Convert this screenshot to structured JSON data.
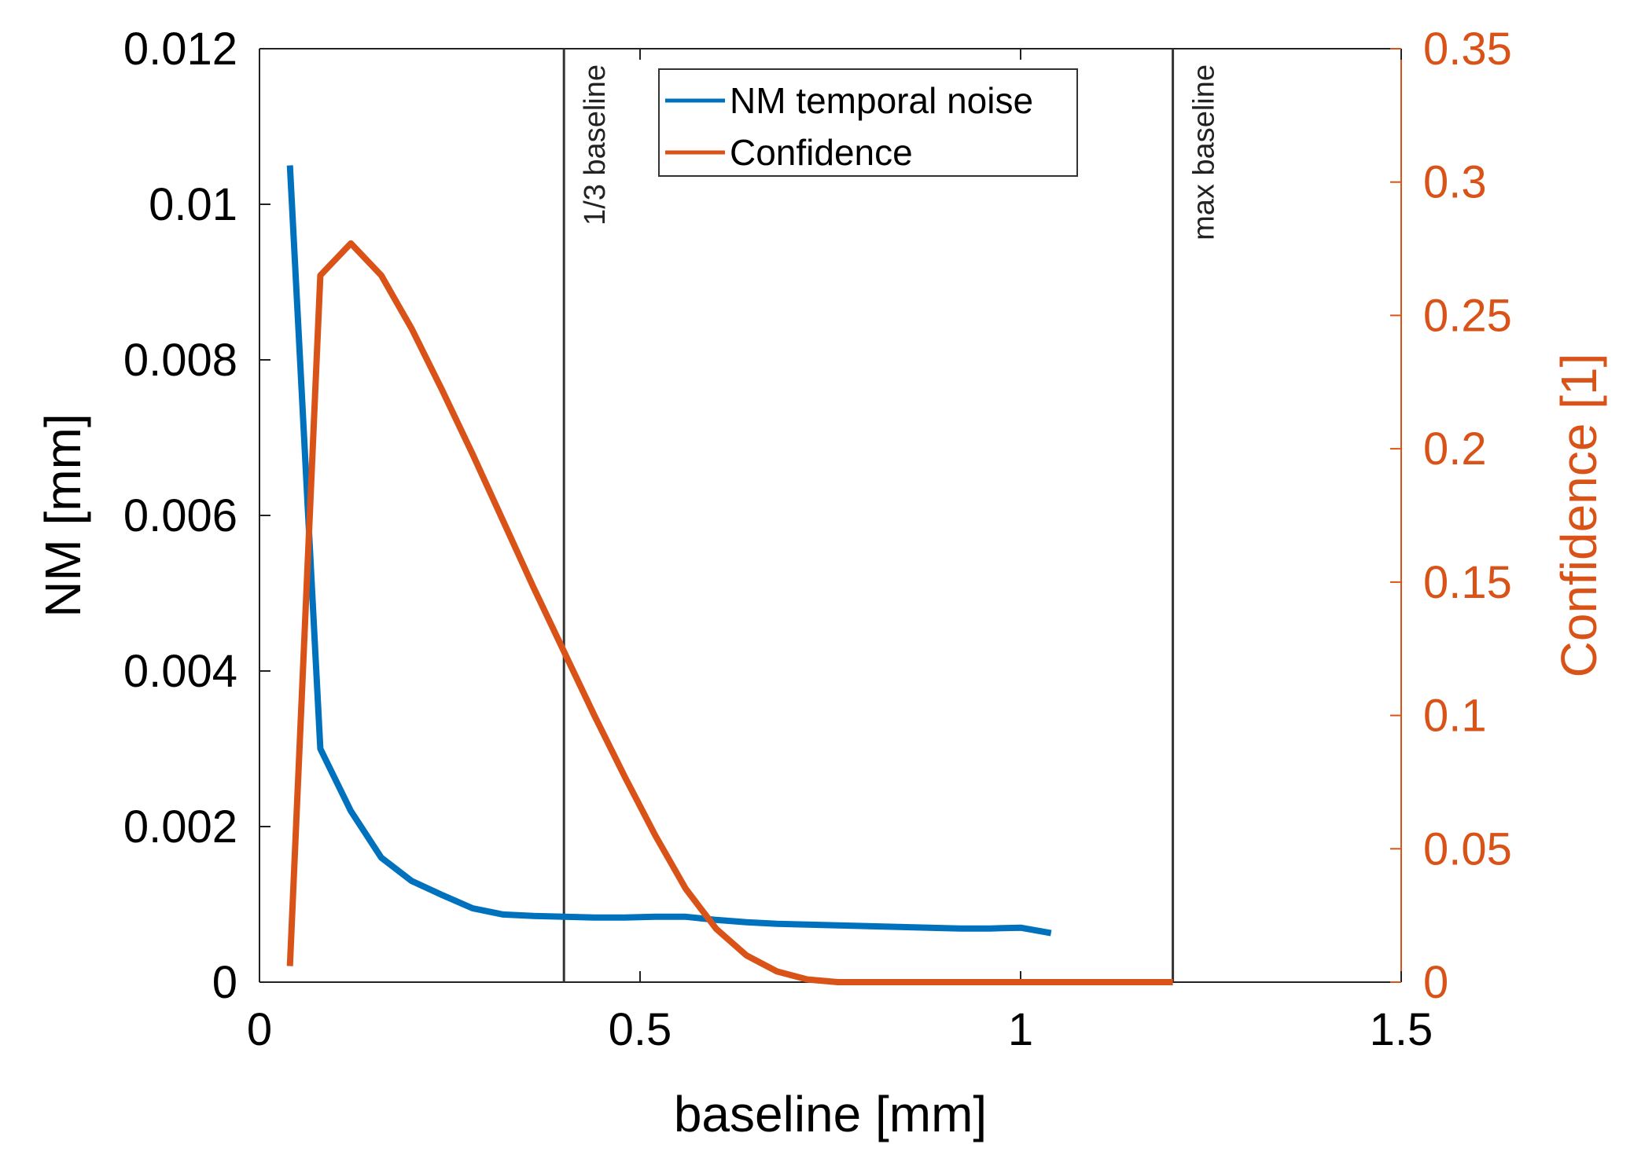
{
  "chart_data": {
    "type": "line",
    "title": "",
    "xlabel": "baseline [mm]",
    "ylabel_left": "NM [mm]",
    "ylabel_right": "Confidence [1]",
    "xlim": [
      0,
      1.5
    ],
    "ylim_left": [
      0,
      0.012
    ],
    "ylim_right": [
      0,
      0.35
    ],
    "x_ticks": [
      "0",
      "0.5",
      "1",
      "1.5"
    ],
    "y_left_ticks": [
      "0",
      "0.002",
      "0.004",
      "0.006",
      "0.008",
      "0.01",
      "0.012"
    ],
    "y_right_ticks": [
      "0",
      "0.05",
      "0.1",
      "0.15",
      "0.2",
      "0.25",
      "0.3",
      "0.35"
    ],
    "grid": false,
    "legend_position": "top-center",
    "colors": {
      "left_axis": "#000000",
      "right_axis": "#D95319",
      "vline": "#333333"
    },
    "reference_lines": [
      {
        "x": 0.4,
        "label": "1/3 baseline"
      },
      {
        "x": 1.2,
        "label": "max baseline"
      }
    ],
    "series": [
      {
        "name": "NM temporal noise",
        "axis": "left",
        "color": "#0072BD",
        "x": [
          0.04,
          0.08,
          0.12,
          0.16,
          0.2,
          0.24,
          0.28,
          0.32,
          0.36,
          0.4,
          0.44,
          0.48,
          0.52,
          0.56,
          0.6,
          0.64,
          0.68,
          0.72,
          0.76,
          0.8,
          0.84,
          0.88,
          0.92,
          0.96,
          1.0,
          1.04
        ],
        "values": [
          0.0105,
          0.003,
          0.0022,
          0.0016,
          0.0013,
          0.00112,
          0.00095,
          0.00087,
          0.00085,
          0.00084,
          0.00083,
          0.00083,
          0.00084,
          0.00084,
          0.0008,
          0.00077,
          0.00075,
          0.00074,
          0.00073,
          0.00072,
          0.00071,
          0.0007,
          0.00069,
          0.00069,
          0.0007,
          0.00063
        ]
      },
      {
        "name": "Confidence",
        "axis": "right",
        "color": "#D95319",
        "x": [
          0.04,
          0.08,
          0.12,
          0.16,
          0.2,
          0.24,
          0.28,
          0.32,
          0.36,
          0.4,
          0.44,
          0.48,
          0.52,
          0.56,
          0.6,
          0.64,
          0.68,
          0.72,
          0.76,
          0.8,
          0.84,
          0.88,
          0.92,
          0.96,
          1.0,
          1.04,
          1.08,
          1.12,
          1.16,
          1.2
        ],
        "values": [
          0.006,
          0.265,
          0.277,
          0.265,
          0.245,
          0.222,
          0.198,
          0.173,
          0.148,
          0.124,
          0.1,
          0.077,
          0.055,
          0.035,
          0.02,
          0.01,
          0.004,
          0.001,
          0.0,
          0.0,
          0.0,
          0.0,
          0.0,
          0.0,
          0.0,
          0.0,
          0.0,
          0.0,
          0.0,
          0.0
        ]
      }
    ]
  }
}
